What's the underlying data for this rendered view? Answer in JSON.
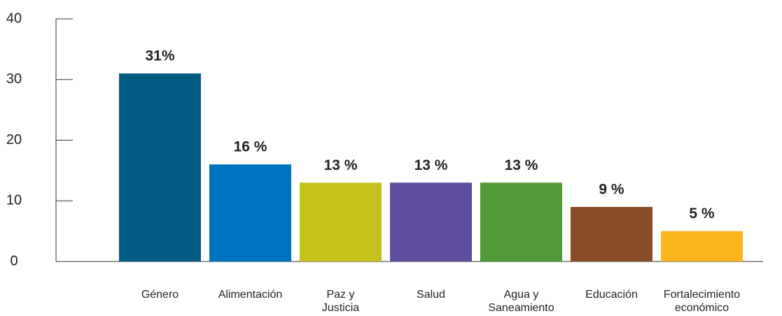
{
  "chart_data": {
    "type": "bar",
    "categories": [
      "Género",
      "Alimentación",
      "Paz y\nJusticia",
      "Salud",
      "Agua y\nSaneamiento",
      "Educación",
      "Fortalecimiento\neconómico"
    ],
    "values": [
      31,
      16,
      13,
      13,
      13,
      9,
      5
    ],
    "value_labels": [
      "31%",
      "16 %",
      "13 %",
      "13 %",
      "13 %",
      "9 %",
      "5 %"
    ],
    "colors": [
      "#005a82",
      "#0073bf",
      "#c3c11a",
      "#5f4ea0",
      "#529a37",
      "#874e26",
      "#fbb31e"
    ],
    "ylim": [
      0,
      40
    ],
    "yticks": [
      0,
      10,
      20,
      30,
      40
    ]
  }
}
